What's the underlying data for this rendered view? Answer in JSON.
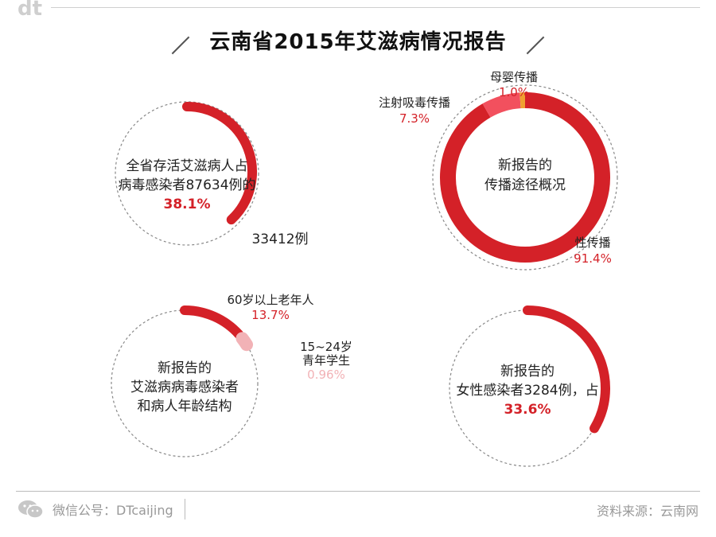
{
  "header": {
    "logo": "dt",
    "title": "云南省2015年艾滋病情况报告"
  },
  "footer": {
    "wechat_label": "微信公号：DTcaijing",
    "source": "资料来源：云南网"
  },
  "colors": {
    "red": "#d42128",
    "pink": "#f2505e",
    "light_pink": "#f2b2b6",
    "orange": "#f0a030",
    "gray_text": "#999999"
  },
  "icons": [
    "wechat-icon"
  ],
  "chart_data": [
    {
      "type": "pie",
      "center_text": [
        "全省存活艾滋病人占",
        "病毒感染者87634例的"
      ],
      "highlight": "38.1%",
      "label": "33412例",
      "values": [
        38.1
      ]
    },
    {
      "type": "pie",
      "center_text": [
        "新报告的",
        "传播途径概况"
      ],
      "slices": [
        {
          "name": "性传播",
          "label": "91.4%",
          "value": 91.4,
          "color": "#d42128"
        },
        {
          "name": "注射吸毒传播",
          "label": "7.3%",
          "value": 7.3,
          "color": "#f2505e"
        },
        {
          "name": "母婴传播",
          "label": "1.0%",
          "value": 1.0,
          "color": "#f0a030"
        }
      ]
    },
    {
      "type": "pie",
      "center_text": [
        "新报告的",
        "艾滋病病毒感染者",
        "和病人年龄结构"
      ],
      "slices": [
        {
          "name": "60岁以上老年人",
          "label": "13.7%",
          "value": 13.7,
          "color": "#d42128"
        },
        {
          "name": "15~24岁\n青年学生",
          "label": "0.96%",
          "value": 0.96,
          "color": "#f2b2b6"
        }
      ]
    },
    {
      "type": "pie",
      "center_text": [
        "新报告的",
        "女性感染者3284例，占"
      ],
      "highlight": "33.6%",
      "values": [
        33.6
      ]
    }
  ]
}
